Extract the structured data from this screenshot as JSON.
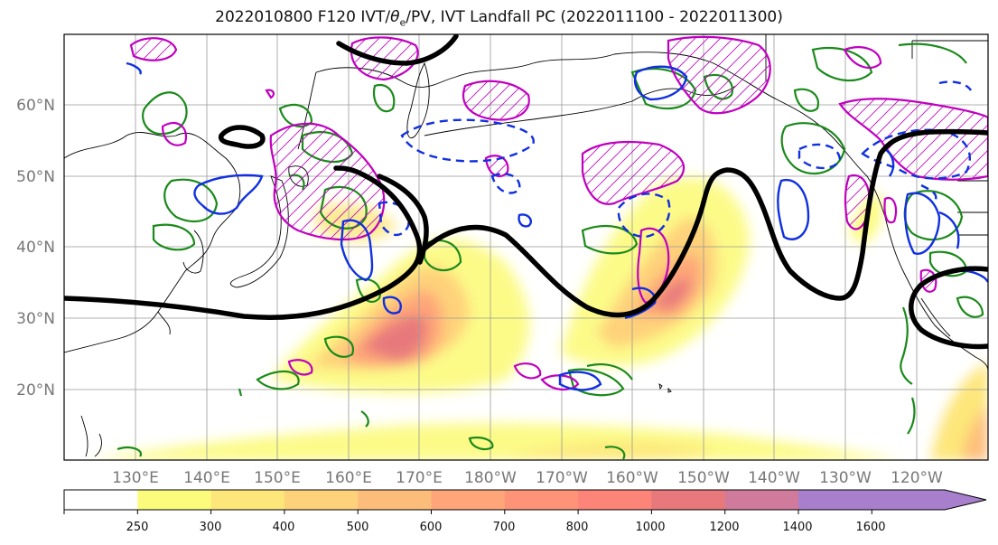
{
  "title": {
    "prefix": "2022010800 F120 IVT/",
    "theta": "θ",
    "theta_sub": "e",
    "suffix": "/PV, IVT Landfall PC (2022011100 - 2022011300)"
  },
  "map": {
    "lat_labels": [
      "60°N",
      "50°N",
      "40°N",
      "30°N",
      "20°N"
    ],
    "lon_labels": [
      "130°E",
      "140°E",
      "150°E",
      "160°E",
      "170°E",
      "180°W",
      "170°W",
      "160°W",
      "150°W",
      "140°W",
      "130°W",
      "120°W"
    ],
    "contour_colors": {
      "black": "#000000",
      "green": "#1a8a1a",
      "blue": "#1030e0",
      "magenta": "#c000c0"
    }
  },
  "colorbar": {
    "labels": [
      "250",
      "300",
      "400",
      "500",
      "600",
      "700",
      "800",
      "1000",
      "1200",
      "1400",
      "1600"
    ],
    "colors": [
      "#ffffff",
      "#fcfb7c",
      "#fde67a",
      "#fed27a",
      "#fdbd7a",
      "#fea679",
      "#fd9477",
      "#fc8478",
      "#e7797c",
      "#d07b9c",
      "#a77fcc"
    ]
  }
}
